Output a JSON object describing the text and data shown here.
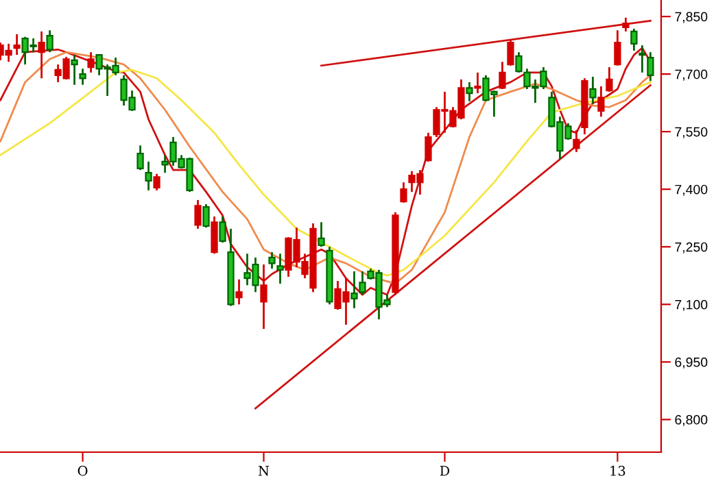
{
  "chart_data": {
    "type": "candlestick",
    "categories": [
      null,
      null,
      null,
      null,
      null,
      null,
      null,
      null,
      null,
      null,
      "O",
      null,
      null,
      null,
      null,
      null,
      null,
      null,
      null,
      null,
      null,
      null,
      null,
      null,
      null,
      null,
      null,
      null,
      null,
      null,
      null,
      null,
      "N",
      null,
      null,
      null,
      null,
      null,
      null,
      null,
      null,
      null,
      null,
      null,
      null,
      null,
      null,
      null,
      null,
      null,
      null,
      null,
      null,
      null,
      "D",
      null,
      null,
      null,
      null,
      null,
      null,
      null,
      null,
      null,
      null,
      null,
      null,
      null,
      null,
      null,
      null,
      null,
      null,
      null,
      null,
      "13",
      null,
      null,
      null,
      null
    ],
    "ohlc": [
      [
        7750,
        7782,
        7736,
        7775
      ],
      [
        7750,
        7779,
        7732,
        7761
      ],
      [
        7768,
        7804,
        7750,
        7775
      ],
      [
        7793,
        7797,
        7725,
        7757
      ],
      [
        7775,
        7793,
        7757,
        7772
      ],
      [
        7757,
        7811,
        7689,
        7782
      ],
      [
        7800,
        7814,
        7757,
        7764
      ],
      [
        7697,
        7725,
        7679,
        7711
      ],
      [
        7689,
        7745,
        7686,
        7739
      ],
      [
        7736,
        7750,
        7672,
        7725
      ],
      [
        7700,
        7714,
        7672,
        7689
      ],
      [
        7718,
        7757,
        7704,
        7739
      ],
      [
        7750,
        7752,
        7697,
        7714
      ],
      [
        7718,
        7725,
        7643,
        7714
      ],
      [
        7722,
        7743,
        7697,
        7704
      ],
      [
        7686,
        7697,
        7618,
        7632
      ],
      [
        7639,
        7657,
        7604,
        7607
      ],
      [
        7493,
        7514,
        7450,
        7454
      ],
      [
        7443,
        7472,
        7397,
        7422
      ],
      [
        7404,
        7440,
        7397,
        7432
      ],
      [
        7472,
        7489,
        7443,
        7464
      ],
      [
        7522,
        7536,
        7461,
        7472
      ],
      [
        7479,
        7489,
        7454,
        7457
      ],
      [
        7479,
        7482,
        7393,
        7397
      ],
      [
        7307,
        7372,
        7297,
        7357
      ],
      [
        7354,
        7361,
        7300,
        7304
      ],
      [
        7236,
        7329,
        7232,
        7314
      ],
      [
        7314,
        7329,
        7261,
        7265
      ],
      [
        7236,
        7297,
        7096,
        7100
      ],
      [
        7118,
        7165,
        7100,
        7132
      ],
      [
        7182,
        7232,
        7150,
        7168
      ],
      [
        7204,
        7222,
        7132,
        7150
      ],
      [
        7107,
        7204,
        7036,
        7150
      ],
      [
        7222,
        7236,
        7193,
        7207
      ],
      [
        7200,
        7232,
        7154,
        7190
      ],
      [
        7190,
        7275,
        7172,
        7272
      ],
      [
        7211,
        7300,
        7197,
        7268
      ],
      [
        7179,
        7232,
        7168,
        7211
      ],
      [
        7143,
        7311,
        7132,
        7297
      ],
      [
        7272,
        7314,
        7250,
        7254
      ],
      [
        7240,
        7250,
        7100,
        7107
      ],
      [
        7090,
        7161,
        7086,
        7140
      ],
      [
        7107,
        7168,
        7047,
        7132
      ],
      [
        7129,
        7186,
        7090,
        7115
      ],
      [
        7157,
        7186,
        7125,
        7132
      ],
      [
        7186,
        7193,
        7165,
        7168
      ],
      [
        7182,
        7190,
        7061,
        7093
      ],
      [
        7111,
        7125,
        7093,
        7100
      ],
      [
        7132,
        7340,
        7125,
        7332
      ],
      [
        7368,
        7418,
        7365,
        7400
      ],
      [
        7418,
        7447,
        7393,
        7436
      ],
      [
        7418,
        7450,
        7386,
        7440
      ],
      [
        7475,
        7547,
        7472,
        7536
      ],
      [
        7543,
        7614,
        7536,
        7607
      ],
      [
        7604,
        7654,
        7547,
        7607
      ],
      [
        7564,
        7614,
        7561,
        7604
      ],
      [
        7586,
        7686,
        7582,
        7664
      ],
      [
        7664,
        7679,
        7629,
        7650
      ],
      [
        7664,
        7704,
        7650,
        7668
      ],
      [
        7689,
        7697,
        7629,
        7632
      ],
      [
        7654,
        7657,
        7589,
        7647
      ],
      [
        7664,
        7732,
        7661,
        7704
      ],
      [
        7725,
        7789,
        7722,
        7782
      ],
      [
        7747,
        7757,
        7704,
        7707
      ],
      [
        7704,
        7714,
        7661,
        7668
      ],
      [
        7668,
        7686,
        7625,
        7664
      ],
      [
        7707,
        7718,
        7661,
        7668
      ],
      [
        7639,
        7654,
        7561,
        7564
      ],
      [
        7575,
        7589,
        7479,
        7500
      ],
      [
        7564,
        7572,
        7529,
        7532
      ],
      [
        7507,
        7554,
        7497,
        7529
      ],
      [
        7561,
        7689,
        7543,
        7682
      ],
      [
        7661,
        7693,
        7622,
        7639
      ],
      [
        7604,
        7668,
        7589,
        7639
      ],
      [
        7657,
        7718,
        7654,
        7686
      ],
      [
        7725,
        7814,
        7722,
        7782
      ],
      [
        7822,
        7847,
        7811,
        7832
      ],
      [
        7811,
        7818,
        7761,
        7779
      ],
      [
        7754,
        7775,
        7704,
        7750
      ],
      [
        7743,
        7757,
        7682,
        7697
      ]
    ],
    "colors": [
      "#d40000",
      "#d40000",
      "#d40000",
      "#1fc01f",
      "#1fc01f",
      "#d40000",
      "#1fc01f",
      "#d40000",
      "#d40000",
      "#1fc01f",
      "#1fc01f",
      "#d40000",
      "#1fc01f",
      "#1fc01f",
      "#1fc01f",
      "#1fc01f",
      "#1fc01f",
      "#1fc01f",
      "#1fc01f",
      "#d40000",
      "#1fc01f",
      "#1fc01f",
      "#1fc01f",
      "#1fc01f",
      "#d40000",
      "#1fc01f",
      "#d40000",
      "#1fc01f",
      "#1fc01f",
      "#d40000",
      "#1fc01f",
      "#1fc01f",
      "#d40000",
      "#1fc01f",
      "#1fc01f",
      "#d40000",
      "#d40000",
      "#d40000",
      "#d40000",
      "#1fc01f",
      "#1fc01f",
      "#d40000",
      "#d40000",
      "#1fc01f",
      "#1fc01f",
      "#1fc01f",
      "#1fc01f",
      "#1fc01f",
      "#d40000",
      "#d40000",
      "#d40000",
      "#d40000",
      "#d40000",
      "#d40000",
      "#d40000",
      "#d40000",
      "#d40000",
      "#1fc01f",
      "#d40000",
      "#1fc01f",
      "#1fc01f",
      "#d40000",
      "#d40000",
      "#1fc01f",
      "#1fc01f",
      "#1fc01f",
      "#1fc01f",
      "#1fc01f",
      "#1fc01f",
      "#1fc01f",
      "#d40000",
      "#d40000",
      "#1fc01f",
      "#d40000",
      "#d40000",
      "#d40000",
      "#d40000",
      "#1fc01f",
      "#1fc01f",
      "#1fc01f"
    ],
    "series": [
      {
        "type": "line",
        "color": "#d01010",
        "values": [
          7632,
          null,
          null,
          7757,
          null,
          null,
          null,
          7764,
          7757,
          null,
          null,
          null,
          7725,
          null,
          7707,
          7704,
          null,
          7654,
          7582,
          null,
          7489,
          7450,
          null,
          7450,
          null,
          7393,
          null,
          7332,
          7257,
          null,
          7197,
          null,
          7161,
          7179,
          null,
          7204,
          null,
          null,
          null,
          7243,
          7232,
          null,
          7168,
          null,
          7125,
          7143,
          null,
          7125,
          7179,
          null,
          7357,
          null,
          7500,
          null,
          null,
          null,
          7607,
          null,
          null,
          7654,
          null,
          null,
          7679,
          null,
          7704,
          null,
          7704,
          7668,
          7607,
          7554,
          7547,
          7590,
          7625,
          7632,
          null,
          7661,
          7714,
          7750,
          7768,
          7732
        ]
      },
      {
        "type": "line",
        "color": "#f08a4b",
        "values": [
          7525,
          null,
          null,
          7679,
          null,
          null,
          7739,
          null,
          7757,
          null,
          null,
          null,
          7743,
          null,
          null,
          7725,
          null,
          7689,
          null,
          null,
          7607,
          null,
          null,
          7511,
          null,
          null,
          null,
          7393,
          null,
          null,
          7322,
          null,
          7243,
          null,
          null,
          7207,
          null,
          7190,
          null,
          null,
          7222,
          null,
          7207,
          null,
          null,
          7172,
          null,
          null,
          7154,
          null,
          7190,
          null,
          null,
          null,
          7340,
          null,
          null,
          7536,
          null,
          7632,
          null,
          null,
          7654,
          null,
          null,
          7675,
          null,
          7661,
          null,
          null,
          7632,
          null,
          7618,
          null,
          7614,
          null,
          7632,
          null,
          7679,
          7697
        ]
      },
      {
        "type": "line",
        "color": "#f5e642",
        "values": [
          7489,
          null,
          null,
          null,
          null,
          null,
          7572,
          null,
          null,
          null,
          null,
          7654,
          null,
          null,
          7704,
          null,
          7711,
          null,
          null,
          7689,
          null,
          null,
          7632,
          null,
          null,
          null,
          7547,
          null,
          null,
          7464,
          null,
          null,
          7386,
          null,
          null,
          null,
          7297,
          null,
          null,
          null,
          7250,
          null,
          null,
          7215,
          null,
          null,
          7182,
          7175,
          null,
          7190,
          null,
          7225,
          null,
          null,
          7279,
          null,
          null,
          null,
          null,
          null,
          7418,
          null,
          null,
          null,
          7525,
          null,
          null,
          7600,
          null,
          null,
          null,
          7625,
          null,
          null,
          null,
          7643,
          null,
          null,
          null,
          7679
        ]
      },
      {
        "type": "line",
        "color": "#d01010",
        "values": [
          null,
          null,
          null,
          null,
          null,
          null,
          null,
          null,
          null,
          null,
          null,
          null,
          null,
          null,
          null,
          null,
          null,
          null,
          null,
          null,
          null,
          null,
          null,
          null,
          null,
          null,
          null,
          null,
          null,
          null,
          null,
          null,
          null,
          null,
          null,
          null,
          null,
          null,
          null,
          7722,
          null,
          null,
          null,
          null,
          null,
          null,
          null,
          null,
          null,
          null,
          null,
          null,
          null,
          null,
          null,
          null,
          null,
          null,
          null,
          null,
          null,
          null,
          null,
          null,
          null,
          null,
          null,
          null,
          null,
          null,
          null,
          null,
          null,
          null,
          null,
          null,
          null,
          null,
          null,
          7839
        ]
      },
      {
        "type": "line",
        "color": "#d01010",
        "values": [
          null,
          null,
          null,
          null,
          null,
          null,
          null,
          null,
          null,
          null,
          null,
          null,
          null,
          null,
          null,
          null,
          null,
          null,
          null,
          null,
          null,
          null,
          null,
          null,
          null,
          null,
          null,
          null,
          null,
          null,
          null,
          6829,
          null,
          null,
          null,
          null,
          null,
          null,
          null,
          null,
          null,
          null,
          null,
          null,
          null,
          null,
          null,
          null,
          null,
          null,
          null,
          null,
          null,
          null,
          null,
          null,
          null,
          null,
          null,
          null,
          null,
          null,
          null,
          null,
          null,
          null,
          null,
          null,
          null,
          null,
          null,
          null,
          null,
          null,
          null,
          null,
          null,
          null,
          null,
          7671
        ]
      }
    ],
    "ylim": [
      6715,
      7893
    ],
    "yticks": [
      {
        "value": 6800,
        "label": "6,800"
      },
      {
        "value": 6950,
        "label": "6,950"
      },
      {
        "value": 7100,
        "label": "7,100"
      },
      {
        "value": 7250,
        "label": "7,250"
      },
      {
        "value": 7400,
        "label": "7,400"
      },
      {
        "value": 7550,
        "label": "7,550"
      },
      {
        "value": 7700,
        "label": "7,700"
      },
      {
        "value": 7850,
        "label": "7,850"
      }
    ],
    "grid": false
  }
}
